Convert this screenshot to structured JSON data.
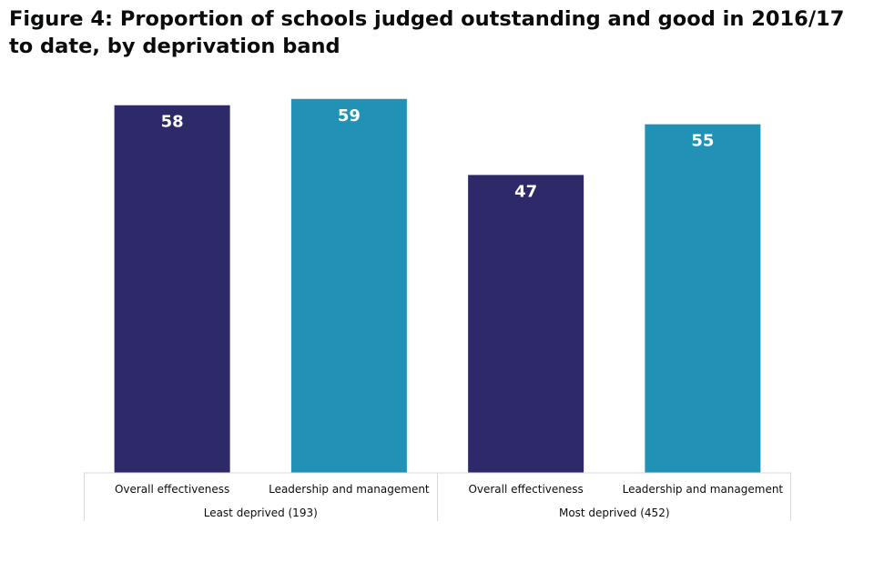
{
  "title": "Figure 4: Proportion of schools judged outstanding and good in 2016/17 to date, by deprivation band",
  "chart_data": {
    "type": "bar",
    "title": "Figure 4: Proportion of schools judged outstanding and good in 2016/17 to date, by deprivation band",
    "xlabel": "",
    "ylabel": "",
    "ylim": [
      0,
      60
    ],
    "grid": false,
    "legend": "none",
    "groups": [
      {
        "label": "Least deprived (193)",
        "bars": [
          {
            "category": "Overall effectiveness",
            "value": 58,
            "color": "#2e2a69"
          },
          {
            "category": "Leadership and management",
            "value": 59,
            "color": "#2192b6"
          }
        ]
      },
      {
        "label": "Most deprived (452)",
        "bars": [
          {
            "category": "Overall effectiveness",
            "value": 47,
            "color": "#2e2a69"
          },
          {
            "category": "Leadership and management",
            "value": 55,
            "color": "#2192b6"
          }
        ]
      }
    ]
  }
}
